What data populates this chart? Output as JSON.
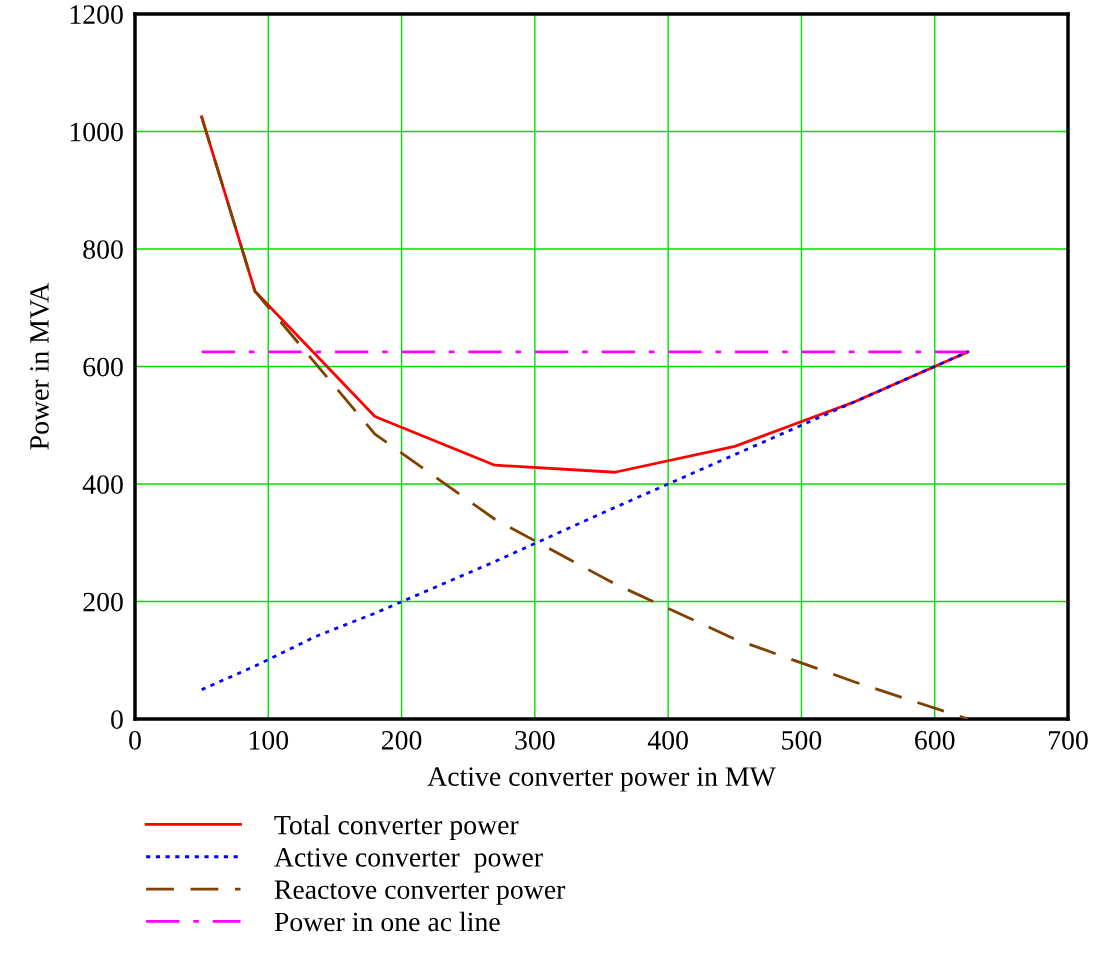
{
  "chart_data": {
    "type": "line",
    "xlabel": "Active converter power in MW",
    "ylabel": "Power in MVA",
    "xlim": [
      0,
      700
    ],
    "ylim": [
      0,
      1200
    ],
    "xticks": [
      0,
      100,
      200,
      300,
      400,
      500,
      600,
      700
    ],
    "yticks": [
      0,
      200,
      400,
      600,
      800,
      1000,
      1200
    ],
    "grid": true,
    "legend": "bottom",
    "marker": "none",
    "series": [
      {
        "name": "Total converter power",
        "color": "#ff0000",
        "line_style": "solid",
        "x": [
          50,
          90,
          180,
          270,
          360,
          450,
          540,
          625
        ],
        "values": [
          1025,
          728,
          515,
          432,
          420,
          464,
          540,
          625
        ]
      },
      {
        "name": "Active converter  power",
        "color": "#0000ff",
        "line_style": "dotted",
        "x": [
          50,
          90,
          135,
          180,
          270,
          360,
          450,
          540,
          625
        ],
        "values": [
          50,
          90,
          140,
          180,
          268,
          360,
          450,
          540,
          625
        ]
      },
      {
        "name": "Reactove converter power",
        "color": "#804000",
        "line_style": "dashed",
        "x": [
          50,
          90,
          180,
          270,
          360,
          450,
          540,
          625
        ],
        "values": [
          1025,
          728,
          485,
          340,
          230,
          136,
          63,
          0
        ]
      },
      {
        "name": "Power in one ac line",
        "color": "#ff00ff",
        "line_style": "dashdot",
        "x": [
          50,
          625
        ],
        "values": [
          625,
          625
        ]
      }
    ]
  }
}
